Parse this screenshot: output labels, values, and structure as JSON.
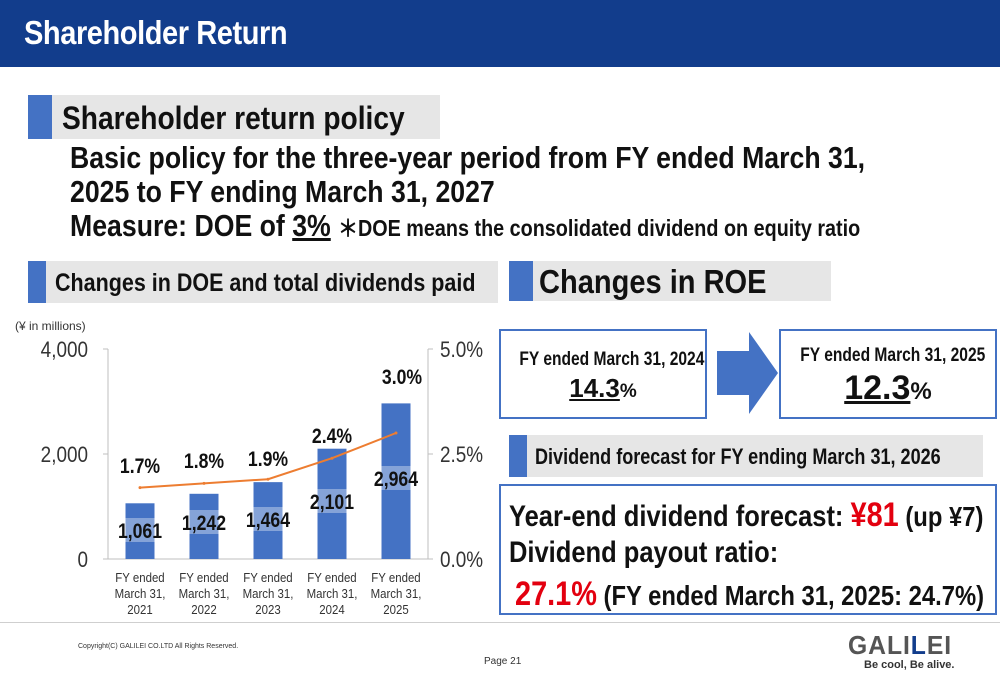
{
  "header": {
    "title": "Shareholder Return"
  },
  "policy": {
    "section_title": "Shareholder return policy",
    "line1": "Basic policy for the three-year period from FY ended March 31,",
    "line2": "2025 to FY ending March 31, 2027",
    "measure_prefix": "Measure: DOE of ",
    "measure_value": "3%",
    "measure_note": "＊DOE means the consolidated dividend on equity ratio"
  },
  "doe_section": {
    "title": "Changes in DOE and total dividends paid"
  },
  "roe_section": {
    "title": "Changes in ROE",
    "boxes": [
      {
        "label": "FY ended March 31, 2024",
        "value": "14.3",
        "unit": "%"
      },
      {
        "label": "FY ended March 31, 2025",
        "value": "12.3",
        "unit": "%"
      }
    ]
  },
  "dividend_section": {
    "title": "Dividend forecast for FY ending March 31, 2026",
    "forecast_label": "Year-end dividend forecast: ",
    "forecast_value": "¥81",
    "forecast_change": " (up ¥7)",
    "payout_label": "Dividend payout ratio:",
    "payout_value": "27.1%",
    "payout_prev": " (FY ended March 31, 2025: 24.7%)"
  },
  "chart_data": {
    "type": "bar",
    "unit_label": "(¥ in millions)",
    "categories": [
      [
        "FY ended",
        "March 31,",
        "2021"
      ],
      [
        "FY ended",
        "March 31,",
        "2022"
      ],
      [
        "FY ended",
        "March 31,",
        "2023"
      ],
      [
        "FY ended",
        "March 31,",
        "2024"
      ],
      [
        "FY ended",
        "March 31,",
        "2025"
      ]
    ],
    "left_axis": {
      "ylim": [
        0,
        4000
      ],
      "ticks": [
        "0",
        "2,000",
        "4,000"
      ],
      "tick_values": [
        0,
        2000,
        4000
      ]
    },
    "right_axis": {
      "ylim": [
        0,
        5.0
      ],
      "ticks": [
        "0.0%",
        "2.5%",
        "5.0%"
      ],
      "tick_values": [
        0,
        2.5,
        5.0
      ]
    },
    "series": [
      {
        "type": "bar",
        "axis": "left",
        "values": [
          1061,
          1242,
          1464,
          2101,
          2964
        ],
        "labels": [
          "1,061",
          "1,242",
          "1,464",
          "2,101",
          "2,964"
        ],
        "color": "#4472c4"
      },
      {
        "type": "line",
        "axis": "right",
        "values": [
          1.7,
          1.8,
          1.9,
          2.4,
          3.0
        ],
        "labels": [
          "1.7%",
          "1.8%",
          "1.9%",
          "2.4%",
          "3.0%"
        ],
        "color": "#ed7d31"
      }
    ]
  },
  "footer": {
    "copyright": "Copyright(C) GALILEI CO.LTD All Rights Reserved.",
    "page": "Page 21",
    "logo_text_a": "GALI",
    "logo_text_b": "L",
    "logo_text_c": "EI",
    "tagline": "Be cool, Be alive."
  },
  "colors": {
    "navy": "#123d8c",
    "accent": "#4472c4",
    "line": "#ed7d31",
    "red": "#e3000f"
  }
}
